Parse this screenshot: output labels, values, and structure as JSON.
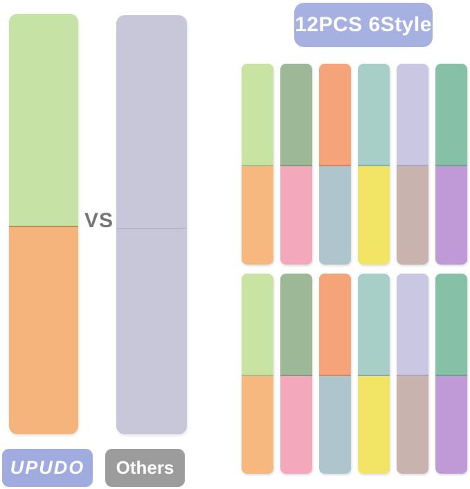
{
  "header_badge": {
    "label": "12PCS 6Style",
    "bg": "#a7b1e1",
    "text_color": "#ffffff"
  },
  "comparison": {
    "vs_label": "VS",
    "vs_color": "#757575",
    "ours_strip": {
      "top_color": "#c6e2a4",
      "bottom_color": "#f4b47b",
      "divider_color": "#c08a58"
    },
    "others_strip": {
      "color": "#c7c7d9",
      "divider_color": "#a9a9c2"
    },
    "ours_badge": {
      "label": "UPUDO",
      "bg": "#a0abe0",
      "text_color": "#ffffff"
    },
    "others_badge": {
      "label": "Others",
      "bg": "#9c9c9c",
      "text_color": "#ffffff"
    }
  },
  "style_grid": {
    "rows": 2,
    "columns": 6,
    "styles": [
      {
        "name": "green-orange",
        "top": "#c9e3a3",
        "bottom": "#f6b87e"
      },
      {
        "name": "sage-pink",
        "top": "#9db896",
        "bottom": "#f3a8bb"
      },
      {
        "name": "salmon-bluegray",
        "top": "#f4a478",
        "bottom": "#afc5ce"
      },
      {
        "name": "aqua-yellow",
        "top": "#a7cfc7",
        "bottom": "#f2e565"
      },
      {
        "name": "lavender-taupe",
        "top": "#c9c7e2",
        "bottom": "#c9b3af"
      },
      {
        "name": "teal-purple",
        "top": "#86c0a7",
        "bottom": "#c099d7"
      }
    ]
  }
}
